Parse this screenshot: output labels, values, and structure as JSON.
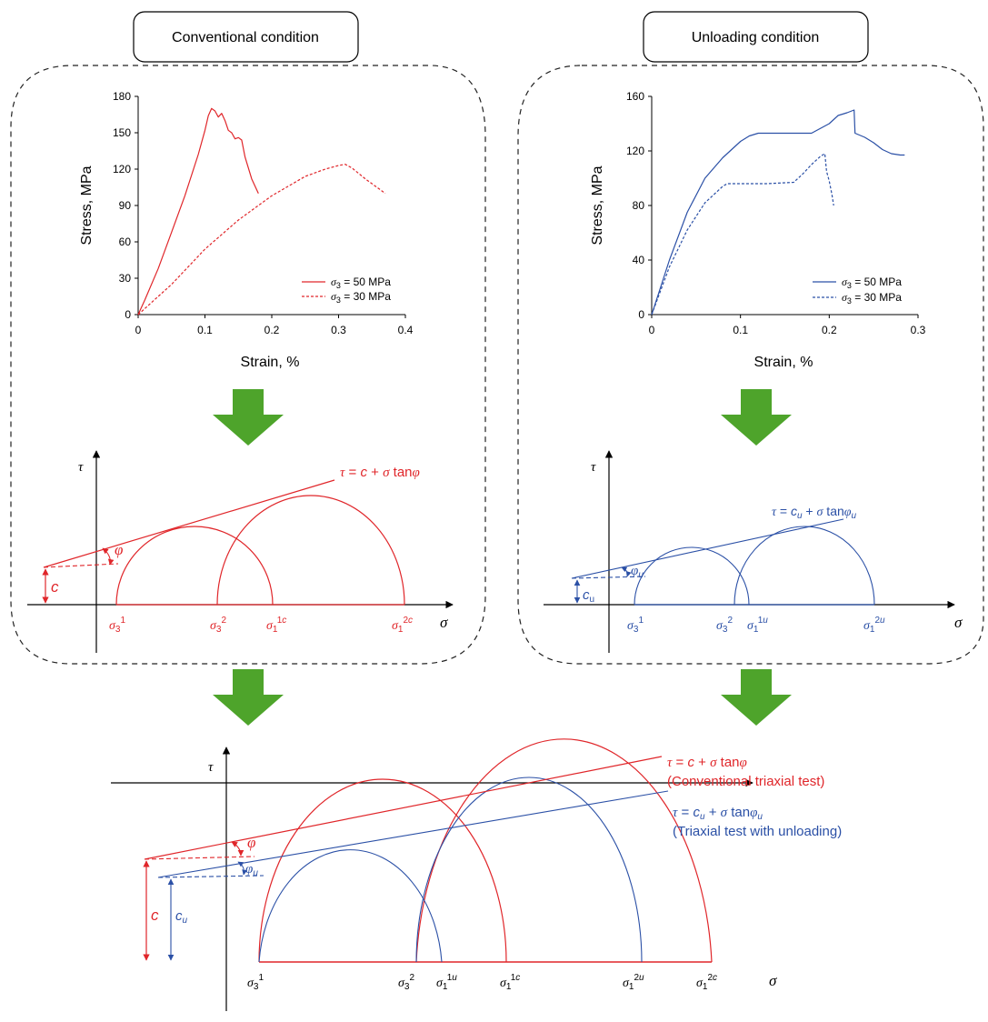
{
  "colors": {
    "red": "#e0262a",
    "blue": "#2b50a6",
    "green": "#4ea42b",
    "dash": "#333333"
  },
  "headers": {
    "conventional": "Conventional condition",
    "unloading": "Unloading condition"
  },
  "chart_data": [
    {
      "type": "line",
      "ylabel": "Stress, MPa",
      "xlabel": "Strain, %",
      "xlim": [
        0,
        0.4
      ],
      "ylim": [
        0,
        180
      ],
      "xticks": [
        "0",
        "0.1",
        "0.2",
        "0.3",
        "0.4"
      ],
      "yticks": [
        "0",
        "30",
        "60",
        "90",
        "120",
        "150",
        "180"
      ],
      "legend": [
        "σ3 = 50 MPa",
        "σ3 = 30 MPa"
      ],
      "legend_placement": "bottom-right",
      "grid": false,
      "series": [
        {
          "name": "σ3 = 50 MPa",
          "style": "solid",
          "color": "#e0262a",
          "x": [
            0,
            0.01,
            0.03,
            0.05,
            0.07,
            0.09,
            0.1,
            0.105,
            0.11,
            0.115,
            0.12,
            0.125,
            0.13,
            0.135,
            0.14,
            0.145,
            0.15,
            0.155,
            0.16,
            0.17,
            0.18
          ],
          "y": [
            0,
            12,
            38,
            68,
            98,
            132,
            152,
            164,
            170,
            168,
            163,
            166,
            160,
            152,
            150,
            145,
            146,
            144,
            130,
            112,
            100
          ]
        },
        {
          "name": "σ3 = 30 MPa",
          "style": "dashed",
          "color": "#e0262a",
          "x": [
            0,
            0.05,
            0.1,
            0.15,
            0.2,
            0.25,
            0.28,
            0.3,
            0.31,
            0.32,
            0.34,
            0.37
          ],
          "y": [
            0,
            25,
            54,
            78,
            98,
            114,
            120,
            123,
            124,
            121,
            112,
            100
          ]
        }
      ]
    },
    {
      "type": "line",
      "ylabel": "Stress, MPa",
      "xlabel": "Strain, %",
      "xlim": [
        0,
        0.3
      ],
      "ylim": [
        0,
        160
      ],
      "xticks": [
        "0",
        "0.1",
        "0.2",
        "0.3"
      ],
      "yticks": [
        "0",
        "40",
        "80",
        "120",
        "160"
      ],
      "legend": [
        "σ3 = 50 MPa",
        "σ3 = 30 MPa"
      ],
      "legend_placement": "bottom-right",
      "grid": false,
      "series": [
        {
          "name": "σ3 = 50 MPa",
          "style": "solid",
          "color": "#2b50a6",
          "x": [
            0,
            0.02,
            0.04,
            0.06,
            0.08,
            0.1,
            0.11,
            0.12,
            0.15,
            0.18,
            0.2,
            0.21,
            0.22,
            0.228,
            0.229,
            0.24,
            0.25,
            0.26,
            0.27,
            0.28,
            0.285
          ],
          "y": [
            0,
            40,
            75,
            100,
            115,
            127,
            131,
            133,
            133,
            133,
            140,
            146,
            148,
            150,
            133,
            130,
            126,
            121,
            118,
            117,
            117
          ]
        },
        {
          "name": "σ3 = 30 MPa",
          "style": "dashed",
          "color": "#2b50a6",
          "x": [
            0,
            0.02,
            0.04,
            0.06,
            0.08,
            0.085,
            0.1,
            0.13,
            0.16,
            0.17,
            0.18,
            0.19,
            0.195,
            0.197,
            0.2,
            0.203,
            0.205
          ],
          "y": [
            0,
            35,
            62,
            82,
            94,
            96,
            96,
            96,
            97,
            103,
            110,
            116,
            118,
            105,
            98,
            88,
            80
          ]
        }
      ]
    }
  ],
  "mohr": {
    "top_left": {
      "tau_label": "τ",
      "sigma_label": "σ",
      "envelope": "τ = c + σ tanφ",
      "phi": "φ",
      "c": "c",
      "labels": [
        "σ3^1",
        "σ3^2",
        "σ1^1c",
        "σ1^2c"
      ]
    },
    "top_right": {
      "tau_label": "τ",
      "sigma_label": "σ",
      "envelope": "τ = cu + σ tanφu",
      "phi": "φu",
      "c": "cu",
      "labels": [
        "σ3^1",
        "σ3^2",
        "σ1^1u",
        "σ1^2u"
      ]
    },
    "bottom": {
      "tau_label": "τ",
      "sigma_label": "σ",
      "envelope_red": "τ = c + σ tanφ",
      "caption_red": "(Conventional triaxial test)",
      "envelope_blue": "τ = cu + σ tanφu",
      "caption_blue": "(Triaxial test with unloading)",
      "phi": "φ",
      "phi_u": "φu",
      "c": "c",
      "c_u": "cu",
      "labels": [
        "σ3^1",
        "σ3^2",
        "σ1^1u",
        "σ1^1c",
        "σ1^2u",
        "σ1^2c"
      ]
    }
  }
}
